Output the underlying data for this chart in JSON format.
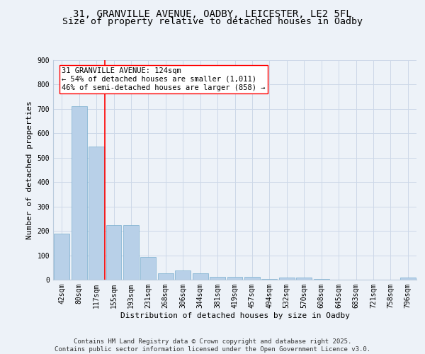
{
  "title_line1": "31, GRANVILLE AVENUE, OADBY, LEICESTER, LE2 5FL",
  "title_line2": "Size of property relative to detached houses in Oadby",
  "xlabel": "Distribution of detached houses by size in Oadby",
  "ylabel": "Number of detached properties",
  "categories": [
    "42sqm",
    "80sqm",
    "117sqm",
    "155sqm",
    "193sqm",
    "231sqm",
    "268sqm",
    "306sqm",
    "344sqm",
    "381sqm",
    "419sqm",
    "457sqm",
    "494sqm",
    "532sqm",
    "570sqm",
    "608sqm",
    "645sqm",
    "683sqm",
    "721sqm",
    "758sqm",
    "796sqm"
  ],
  "values": [
    190,
    712,
    547,
    225,
    225,
    92,
    27,
    37,
    25,
    13,
    12,
    12,
    4,
    9,
    8,
    2,
    0,
    0,
    0,
    0,
    9
  ],
  "bar_color": "#b8d0e8",
  "bar_edge_color": "#7aafcf",
  "grid_color": "#ccd8e8",
  "background_color": "#edf2f8",
  "axes_background": "#edf2f8",
  "vline_color": "red",
  "annotation_text": "31 GRANVILLE AVENUE: 124sqm\n← 54% of detached houses are smaller (1,011)\n46% of semi-detached houses are larger (858) →",
  "annotation_box_color": "white",
  "annotation_border_color": "red",
  "footer_text": "Contains HM Land Registry data © Crown copyright and database right 2025.\nContains public sector information licensed under the Open Government Licence v3.0.",
  "ylim": [
    0,
    900
  ],
  "yticks": [
    0,
    100,
    200,
    300,
    400,
    500,
    600,
    700,
    800,
    900
  ],
  "title_fontsize": 10,
  "subtitle_fontsize": 9.5,
  "axis_label_fontsize": 8,
  "tick_fontsize": 7,
  "footer_fontsize": 6.5,
  "annotation_fontsize": 7.5
}
